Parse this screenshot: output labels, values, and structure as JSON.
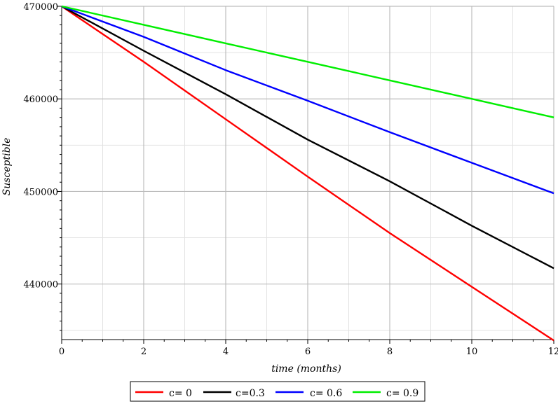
{
  "chart_data": {
    "type": "line",
    "xlabel": "time (months)",
    "ylabel": "Susceptible",
    "xlim": [
      0,
      12
    ],
    "ylim": [
      434000,
      470000
    ],
    "x_ticks": [
      "0",
      "2",
      "4",
      "6",
      "8",
      "10",
      "12"
    ],
    "y_ticks": [
      "440000",
      "450000",
      "460000",
      "470000"
    ],
    "grid": true,
    "legend_position": "bottom",
    "x": [
      0,
      2,
      4,
      6,
      8,
      10,
      12
    ],
    "series": [
      {
        "name": "c= 0",
        "color": "#ff0000",
        "values": [
          470000,
          464000,
          457800,
          451600,
          445500,
          439700,
          433900
        ]
      },
      {
        "name": "c=0.3",
        "color": "#000000",
        "values": [
          470000,
          465200,
          460500,
          455600,
          451100,
          446300,
          441700
        ]
      },
      {
        "name": "c= 0.6",
        "color": "#0000ff",
        "values": [
          470000,
          466700,
          463100,
          459800,
          456400,
          453100,
          449800
        ]
      },
      {
        "name": "c= 0.9",
        "color": "#00ee00",
        "values": [
          470000,
          468000,
          466000,
          464000,
          462000,
          460000,
          458000
        ]
      }
    ]
  }
}
